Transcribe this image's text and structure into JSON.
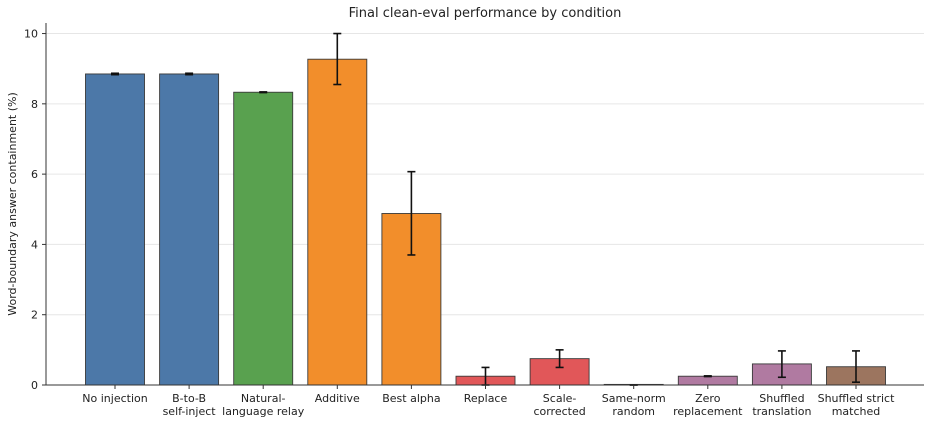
{
  "chart_data": {
    "type": "bar",
    "title": "Final clean-eval performance by condition",
    "xlabel": "",
    "ylabel": "Word-boundary answer containment (%)",
    "ylim": [
      0,
      10.3
    ],
    "yticks": [
      0,
      2,
      4,
      6,
      8,
      10
    ],
    "grid": "horizontal",
    "legend": "none",
    "categories": [
      [
        "No injection"
      ],
      [
        "B-to-B",
        "self-inject"
      ],
      [
        "Natural-",
        "language relay"
      ],
      [
        "Additive"
      ],
      [
        "Best alpha"
      ],
      [
        "Replace"
      ],
      [
        "Scale-",
        "corrected"
      ],
      [
        "Same-norm",
        "random"
      ],
      [
        "Zero",
        "replacement"
      ],
      [
        "Shuffled",
        "translation"
      ],
      [
        "Shuffled strict",
        "matched"
      ]
    ],
    "values": [
      8.85,
      8.85,
      8.33,
      9.27,
      4.88,
      0.25,
      0.75,
      0.0,
      0.25,
      0.6,
      0.52
    ],
    "error_low": [
      8.83,
      8.83,
      8.32,
      8.55,
      3.7,
      0.0,
      0.5,
      0.0,
      0.24,
      0.22,
      0.08
    ],
    "error_high": [
      8.87,
      8.87,
      8.34,
      10.0,
      6.07,
      0.5,
      1.0,
      0.0,
      0.26,
      0.97,
      0.97
    ],
    "colors": [
      "#4c78a8",
      "#4c78a8",
      "#59a14f",
      "#f28e2b",
      "#f28e2b",
      "#e15759",
      "#e15759",
      "#e15759",
      "#b07aa1",
      "#b07aa1",
      "#9c755f"
    ]
  }
}
